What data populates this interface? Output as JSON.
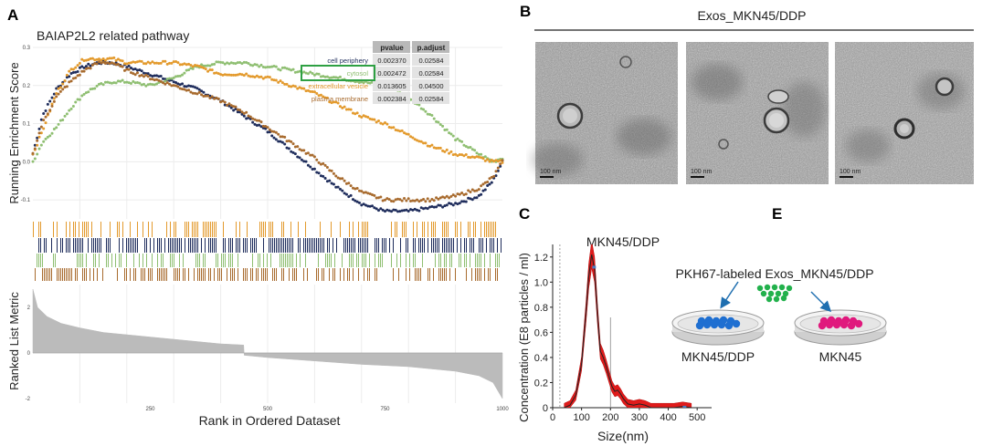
{
  "panels": {
    "A": {
      "letter": "A",
      "title": "BAIAP2L2 related pathway",
      "ylabel_top": "Running Enrichment Score",
      "ylabel_bottom": "Ranked List Metric",
      "xlabel": "Rank in Ordered Dataset",
      "table": {
        "headers": [
          "pvalue",
          "p.adjust"
        ],
        "rows": [
          {
            "name": "cell periphery",
            "pvalue": "0.002370",
            "padjust": "0.02584",
            "color": "#1f2d5c"
          },
          {
            "name": "cytosol",
            "pvalue": "0.002472",
            "padjust": "0.02584",
            "color": "#8fbf72"
          },
          {
            "name": "extracellular vesicle",
            "pvalue": "0.013605",
            "padjust": "0.04500",
            "color": "#e39a2d"
          },
          {
            "name": "plasma membrane",
            "pvalue": "0.002384",
            "padjust": "0.02584",
            "color": "#a86b2e"
          }
        ],
        "highlight_color": "#2ea043"
      }
    },
    "B": {
      "letter": "B",
      "title": "Exos_MKN45/DDP",
      "scale_labels": [
        "100 nm",
        "100 nm",
        "100 nm"
      ]
    },
    "C": {
      "letter": "C",
      "title": "MKN45/DDP",
      "ylabel": "Concentration (E8 particles / ml)",
      "xlabel": "Size(nm)"
    },
    "E": {
      "letter": "E",
      "label": "PKH67-labeled Exos_MKN45/DDP",
      "dish_left": "MKN45/DDP",
      "dish_right": "MKN45",
      "colors": {
        "left_cells": "#1f6fd1",
        "right_cells": "#e0197d",
        "exos": "#22b14c",
        "arrow": "#1f6fb0"
      }
    }
  },
  "chart_data": [
    {
      "type": "line",
      "panel": "A-top",
      "title": "BAIAP2L2 related pathway",
      "xlabel": "",
      "ylabel": "Running Enrichment Score",
      "xlim": [
        0,
        1000
      ],
      "ylim": [
        -0.15,
        0.3
      ],
      "yticks": [
        -0.1,
        0.0,
        0.1,
        0.2,
        0.3
      ],
      "ytick_labels": [
        "-0.1",
        "0.0",
        "0.1",
        "0.2",
        "0.3"
      ],
      "grid": true,
      "series": [
        {
          "name": "cell periphery",
          "color": "#1f2d5c",
          "x": [
            0,
            20,
            50,
            80,
            110,
            140,
            170,
            200,
            250,
            300,
            350,
            400,
            450,
            500,
            550,
            600,
            650,
            700,
            750,
            800,
            850,
            900,
            950,
            980,
            1000
          ],
          "y": [
            0.02,
            0.12,
            0.19,
            0.23,
            0.25,
            0.26,
            0.26,
            0.25,
            0.23,
            0.21,
            0.19,
            0.16,
            0.12,
            0.08,
            0.03,
            -0.02,
            -0.07,
            -0.11,
            -0.13,
            -0.13,
            -0.12,
            -0.11,
            -0.09,
            -0.05,
            0.0
          ]
        },
        {
          "name": "cytosol",
          "color": "#8fbf72",
          "x": [
            0,
            20,
            50,
            80,
            110,
            140,
            170,
            200,
            250,
            300,
            350,
            400,
            450,
            500,
            550,
            600,
            650,
            700,
            750,
            800,
            850,
            900,
            950,
            980,
            1000
          ],
          "y": [
            0.0,
            0.05,
            0.09,
            0.14,
            0.18,
            0.2,
            0.21,
            0.21,
            0.2,
            0.22,
            0.25,
            0.26,
            0.26,
            0.25,
            0.24,
            0.23,
            0.22,
            0.21,
            0.2,
            0.17,
            0.12,
            0.06,
            0.02,
            0.0,
            0.01
          ]
        },
        {
          "name": "extracellular vesicle",
          "color": "#e39a2d",
          "x": [
            0,
            20,
            50,
            80,
            110,
            140,
            170,
            200,
            250,
            300,
            350,
            400,
            450,
            500,
            550,
            600,
            650,
            700,
            750,
            800,
            850,
            900,
            950,
            980,
            1000
          ],
          "y": [
            0.02,
            0.08,
            0.18,
            0.24,
            0.27,
            0.27,
            0.27,
            0.26,
            0.26,
            0.26,
            0.25,
            0.23,
            0.23,
            0.22,
            0.2,
            0.18,
            0.15,
            0.12,
            0.1,
            0.07,
            0.04,
            0.02,
            0.01,
            0.0,
            0.0
          ]
        },
        {
          "name": "plasma membrane",
          "color": "#a86b2e",
          "x": [
            0,
            20,
            50,
            80,
            110,
            140,
            170,
            200,
            250,
            300,
            350,
            400,
            450,
            500,
            550,
            600,
            650,
            700,
            750,
            800,
            850,
            900,
            950,
            980,
            1000
          ],
          "y": [
            0.02,
            0.1,
            0.17,
            0.21,
            0.24,
            0.26,
            0.26,
            0.24,
            0.22,
            0.2,
            0.18,
            0.16,
            0.13,
            0.09,
            0.05,
            0.01,
            -0.04,
            -0.08,
            -0.1,
            -0.1,
            -0.1,
            -0.09,
            -0.07,
            -0.04,
            0.0
          ]
        }
      ]
    },
    {
      "type": "area",
      "panel": "A-bottom",
      "title": "",
      "xlabel": "Rank in Ordered Dataset",
      "ylabel": "Ranked List Metric",
      "xlim": [
        0,
        1000
      ],
      "ylim": [
        -2.2,
        3.0
      ],
      "xticks": [
        250,
        500,
        750,
        1000
      ],
      "xtick_labels": [
        "250",
        "500",
        "750",
        "1000"
      ],
      "yticks": [
        -2,
        0,
        2
      ],
      "ytick_labels": [
        "-2",
        "0",
        "2"
      ],
      "x": [
        0,
        10,
        30,
        60,
        100,
        150,
        200,
        300,
        400,
        449,
        450,
        500,
        600,
        700,
        800,
        900,
        950,
        980,
        1000
      ],
      "values": [
        2.8,
        2.0,
        1.6,
        1.3,
        1.1,
        0.9,
        0.8,
        0.6,
        0.4,
        0.35,
        -0.1,
        -0.2,
        -0.35,
        -0.5,
        -0.6,
        -0.8,
        -1.0,
        -1.3,
        -2.0
      ],
      "color": "#bbbbbb"
    },
    {
      "type": "line",
      "panel": "C",
      "title": "MKN45/DDP",
      "xlabel": "Size(nm)",
      "ylabel": "Concentration (E8 particles / ml)",
      "xlim": [
        0,
        550
      ],
      "ylim": [
        0,
        1.3
      ],
      "xticks": [
        0,
        100,
        200,
        300,
        400,
        500
      ],
      "xtick_labels": [
        "0",
        "100",
        "200",
        "300",
        "400",
        "500"
      ],
      "yticks": [
        0,
        0.2,
        0.4,
        0.6,
        0.8,
        1.0,
        1.2
      ],
      "ytick_labels": [
        "0",
        "0.2",
        "0.4",
        "0.6",
        "0.8",
        "1.0",
        "1.2"
      ],
      "x": [
        40,
        60,
        80,
        100,
        115,
        125,
        135,
        145,
        155,
        165,
        175,
        185,
        195,
        205,
        215,
        225,
        235,
        245,
        260,
        280,
        300,
        320,
        340,
        380,
        420,
        450,
        480
      ],
      "values": [
        0.0,
        0.02,
        0.1,
        0.35,
        0.75,
        1.05,
        1.22,
        1.1,
        0.75,
        0.45,
        0.4,
        0.33,
        0.25,
        0.17,
        0.13,
        0.14,
        0.11,
        0.07,
        0.03,
        0.02,
        0.03,
        0.02,
        0.0,
        0.0,
        0.0,
        0.01,
        0.0
      ],
      "color": "#222222",
      "band_color": "#e01b1b"
    }
  ]
}
